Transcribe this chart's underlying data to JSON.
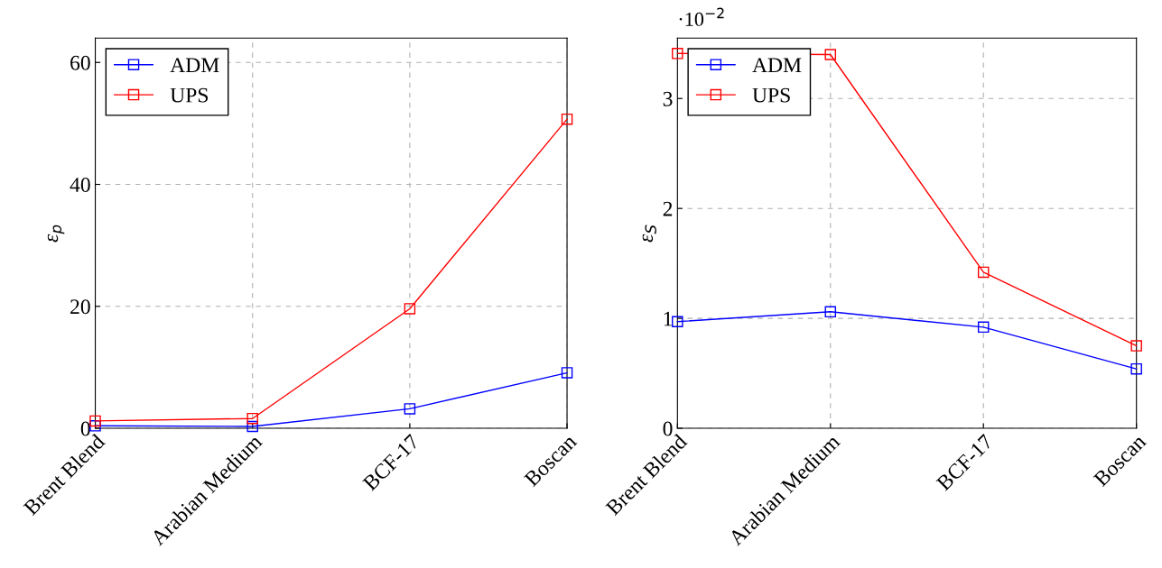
{
  "chart_data": [
    {
      "type": "line",
      "ylabel": "ε$_{p}$",
      "categories": [
        "Brent Blend",
        "Arabian Medium",
        "BCF-17",
        "Boscan"
      ],
      "series": [
        {
          "name": "ADM",
          "color": "#0000ff",
          "values": [
            0.4,
            0.3,
            3.2,
            9.1
          ]
        },
        {
          "name": "UPS",
          "color": "#ff0000",
          "values": [
            1.2,
            1.6,
            19.6,
            50.7
          ]
        }
      ],
      "ylim": [
        0,
        64
      ],
      "yticks": [
        0,
        20,
        40,
        60
      ],
      "grid": true,
      "legend": "top left",
      "marker": "square",
      "line_style": "solid"
    },
    {
      "type": "line",
      "ylabel": "ε$_{S}$",
      "annotations": [
        "·10$^{−2}$"
      ],
      "categories": [
        "Brent Blend",
        "Arabian Medium",
        "BCF-17",
        "Boscan"
      ],
      "series": [
        {
          "name": "ADM",
          "color": "#0000ff",
          "values": [
            0.97,
            1.06,
            0.92,
            0.54
          ]
        },
        {
          "name": "UPS",
          "color": "#ff0000",
          "values": [
            3.41,
            3.4,
            1.42,
            0.75
          ]
        }
      ],
      "ylim": [
        0,
        3.55
      ],
      "yticks": [
        0,
        1,
        2,
        3
      ],
      "grid": true,
      "legend": "top left",
      "marker": "square",
      "line_style": "solid"
    }
  ]
}
